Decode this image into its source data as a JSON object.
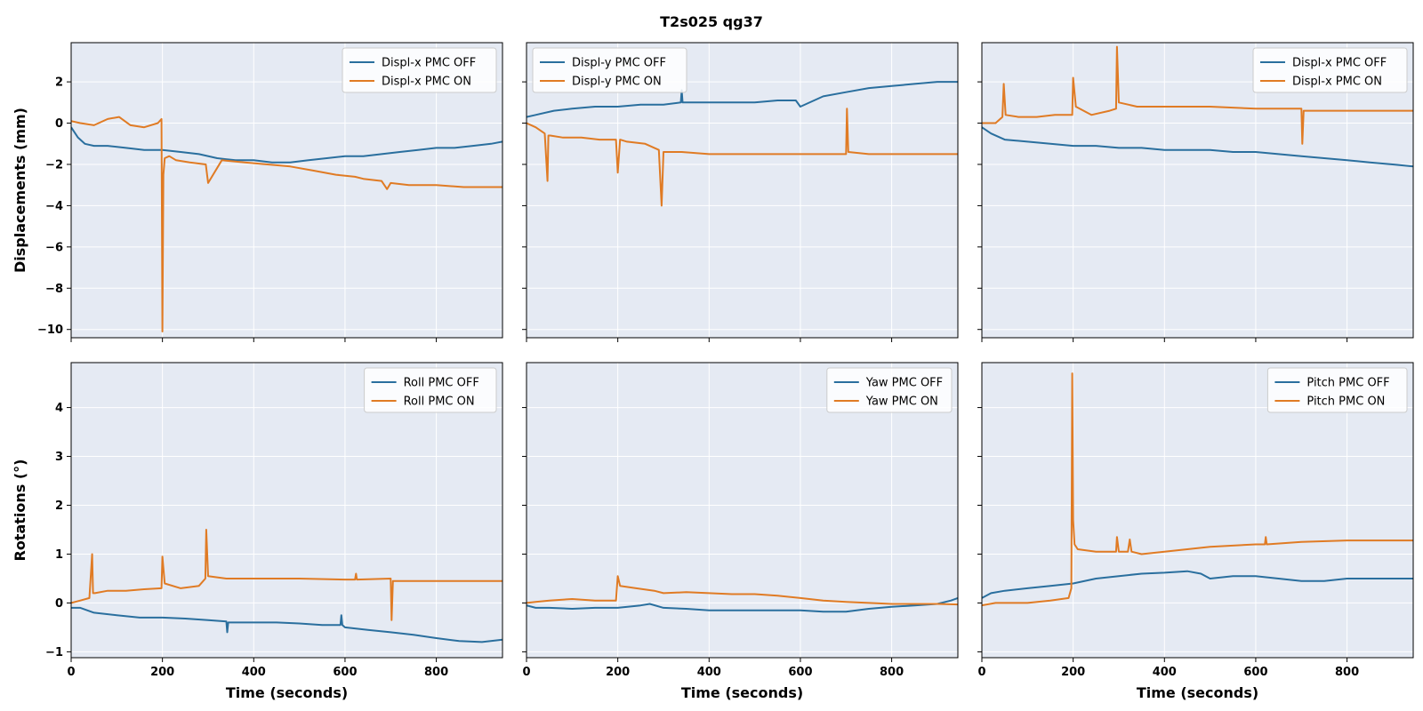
{
  "figure": {
    "title": "T2s025  qg37",
    "background": "#ffffff",
    "panel_background": "#e5eaf3",
    "grid_color": "#ffffff",
    "series_colors": {
      "off": "#2a6f9e",
      "on": "#e07b24"
    }
  },
  "chart_data": [
    {
      "type": "line",
      "panel": "top-left",
      "title": "",
      "xlabel": "",
      "ylabel": "Displacements (mm)",
      "xlim": [
        0,
        945
      ],
      "ylim": [
        -10.4,
        3.9
      ],
      "xticks": [
        0,
        200,
        400,
        600,
        800
      ],
      "yticks": [
        -10,
        -8,
        -6,
        -4,
        -2,
        0,
        2
      ],
      "show_xtick_labels": false,
      "show_ytick_labels": true,
      "grid": true,
      "legend": "top-right",
      "series": [
        {
          "name": "Displ-x PMC OFF",
          "color": "#2a6f9e",
          "x": [
            0,
            15,
            30,
            50,
            80,
            120,
            160,
            200,
            240,
            280,
            320,
            360,
            400,
            440,
            480,
            520,
            560,
            600,
            640,
            680,
            720,
            760,
            800,
            840,
            880,
            920,
            945
          ],
          "y": [
            -0.2,
            -0.7,
            -1.0,
            -1.1,
            -1.1,
            -1.2,
            -1.3,
            -1.3,
            -1.4,
            -1.5,
            -1.7,
            -1.8,
            -1.8,
            -1.9,
            -1.9,
            -1.8,
            -1.7,
            -1.6,
            -1.6,
            -1.5,
            -1.4,
            -1.3,
            -1.2,
            -1.2,
            -1.1,
            -1.0,
            -0.9
          ]
        },
        {
          "name": "Displ-x PMC ON",
          "color": "#e07b24",
          "x": [
            0,
            20,
            50,
            80,
            105,
            130,
            160,
            190,
            198,
            200,
            202,
            205,
            215,
            230,
            260,
            295,
            300,
            330,
            380,
            430,
            480,
            530,
            580,
            622,
            640,
            680,
            692,
            700,
            740,
            800,
            860,
            945
          ],
          "y": [
            0.1,
            0.0,
            -0.1,
            0.2,
            0.3,
            -0.1,
            -0.2,
            0.0,
            0.2,
            -10.1,
            -2.5,
            -1.7,
            -1.6,
            -1.8,
            -1.9,
            -2.0,
            -2.9,
            -1.8,
            -1.9,
            -2.0,
            -2.1,
            -2.3,
            -2.5,
            -2.6,
            -2.7,
            -2.8,
            -3.2,
            -2.9,
            -3.0,
            -3.0,
            -3.1,
            -3.1
          ]
        }
      ]
    },
    {
      "type": "line",
      "panel": "top-center",
      "title": "",
      "xlabel": "",
      "ylabel": "",
      "xlim": [
        0,
        945
      ],
      "ylim": [
        -10.4,
        3.9
      ],
      "xticks": [
        0,
        200,
        400,
        600,
        800
      ],
      "yticks": [
        -10,
        -8,
        -6,
        -4,
        -2,
        0,
        2
      ],
      "show_xtick_labels": false,
      "show_ytick_labels": false,
      "grid": true,
      "legend": "top-left",
      "series": [
        {
          "name": "Displ-y PMC OFF",
          "color": "#2a6f9e",
          "x": [
            0,
            20,
            60,
            100,
            150,
            200,
            250,
            300,
            338,
            340,
            342,
            400,
            450,
            500,
            550,
            590,
            600,
            650,
            700,
            750,
            800,
            850,
            900,
            945
          ],
          "y": [
            0.3,
            0.4,
            0.6,
            0.7,
            0.8,
            0.8,
            0.9,
            0.9,
            1.0,
            1.6,
            1.0,
            1.0,
            1.0,
            1.0,
            1.1,
            1.1,
            0.8,
            1.3,
            1.5,
            1.7,
            1.8,
            1.9,
            2.0,
            2.0
          ]
        },
        {
          "name": "Displ-y PMC ON",
          "color": "#e07b24",
          "x": [
            0,
            20,
            40,
            46,
            48,
            52,
            80,
            120,
            160,
            196,
            200,
            205,
            220,
            260,
            290,
            296,
            300,
            340,
            400,
            500,
            600,
            700,
            702,
            705,
            750,
            800,
            900,
            945
          ],
          "y": [
            0.0,
            -0.2,
            -0.5,
            -2.8,
            -0.6,
            -0.6,
            -0.7,
            -0.7,
            -0.8,
            -0.8,
            -2.4,
            -0.8,
            -0.9,
            -1.0,
            -1.3,
            -4.0,
            -1.4,
            -1.4,
            -1.5,
            -1.5,
            -1.5,
            -1.5,
            0.7,
            -1.4,
            -1.5,
            -1.5,
            -1.5,
            -1.5
          ]
        }
      ]
    },
    {
      "type": "line",
      "panel": "top-right",
      "title": "",
      "xlabel": "",
      "ylabel": "",
      "xlim": [
        0,
        945
      ],
      "ylim": [
        -10.4,
        3.9
      ],
      "xticks": [
        0,
        200,
        400,
        600,
        800
      ],
      "yticks": [
        -10,
        -8,
        -6,
        -4,
        -2,
        0,
        2
      ],
      "show_xtick_labels": false,
      "show_ytick_labels": false,
      "grid": true,
      "legend": "top-right",
      "series": [
        {
          "name": "Displ-x PMC OFF",
          "color": "#2a6f9e",
          "x": [
            0,
            20,
            50,
            100,
            150,
            200,
            250,
            300,
            350,
            400,
            450,
            500,
            550,
            600,
            650,
            700,
            750,
            800,
            850,
            900,
            945
          ],
          "y": [
            -0.2,
            -0.5,
            -0.8,
            -0.9,
            -1.0,
            -1.1,
            -1.1,
            -1.2,
            -1.2,
            -1.3,
            -1.3,
            -1.3,
            -1.4,
            -1.4,
            -1.5,
            -1.6,
            -1.7,
            -1.8,
            -1.9,
            -2.0,
            -2.1
          ]
        },
        {
          "name": "Displ-x PMC ON",
          "color": "#e07b24",
          "x": [
            0,
            30,
            45,
            48,
            52,
            80,
            120,
            160,
            198,
            200,
            206,
            240,
            280,
            294,
            296,
            300,
            340,
            400,
            500,
            600,
            700,
            702,
            705,
            750,
            800,
            900,
            945
          ],
          "y": [
            0.0,
            0.0,
            0.3,
            1.9,
            0.4,
            0.3,
            0.3,
            0.4,
            0.4,
            2.2,
            0.8,
            0.4,
            0.6,
            0.7,
            3.7,
            1.0,
            0.8,
            0.8,
            0.8,
            0.7,
            0.7,
            -1.0,
            0.6,
            0.6,
            0.6,
            0.6,
            0.6
          ]
        }
      ]
    },
    {
      "type": "line",
      "panel": "bottom-left",
      "title": "",
      "xlabel": "Time (seconds)",
      "ylabel": "Rotations (°)",
      "xlim": [
        0,
        945
      ],
      "ylim": [
        -1.12,
        4.92
      ],
      "xticks": [
        0,
        200,
        400,
        600,
        800
      ],
      "yticks": [
        -1,
        0,
        1,
        2,
        3,
        4
      ],
      "show_xtick_labels": true,
      "show_ytick_labels": true,
      "grid": true,
      "legend": "top-right",
      "series": [
        {
          "name": "Roll PMC OFF",
          "color": "#2a6f9e",
          "x": [
            0,
            20,
            50,
            100,
            150,
            200,
            250,
            300,
            340,
            342,
            344,
            400,
            450,
            500,
            550,
            590,
            592,
            594,
            600,
            650,
            700,
            750,
            800,
            850,
            900,
            945
          ],
          "y": [
            -0.1,
            -0.1,
            -0.2,
            -0.25,
            -0.3,
            -0.3,
            -0.32,
            -0.35,
            -0.38,
            -0.6,
            -0.4,
            -0.4,
            -0.4,
            -0.42,
            -0.45,
            -0.45,
            -0.25,
            -0.45,
            -0.5,
            -0.55,
            -0.6,
            -0.65,
            -0.72,
            -0.78,
            -0.8,
            -0.75
          ]
        },
        {
          "name": "Roll PMC ON",
          "color": "#e07b24",
          "x": [
            0,
            20,
            40,
            46,
            48,
            52,
            80,
            120,
            160,
            198,
            200,
            205,
            240,
            280,
            294,
            296,
            300,
            340,
            400,
            500,
            600,
            622,
            624,
            626,
            700,
            702,
            705,
            750,
            800,
            900,
            945
          ],
          "y": [
            0.0,
            0.05,
            0.1,
            1.0,
            0.2,
            0.2,
            0.25,
            0.25,
            0.28,
            0.3,
            0.95,
            0.4,
            0.3,
            0.35,
            0.5,
            1.5,
            0.55,
            0.5,
            0.5,
            0.5,
            0.48,
            0.48,
            0.6,
            0.48,
            0.5,
            -0.35,
            0.45,
            0.45,
            0.45,
            0.45,
            0.45
          ]
        }
      ]
    },
    {
      "type": "line",
      "panel": "bottom-center",
      "title": "",
      "xlabel": "Time (seconds)",
      "ylabel": "",
      "xlim": [
        0,
        945
      ],
      "ylim": [
        -1.12,
        4.92
      ],
      "xticks": [
        0,
        200,
        400,
        600,
        800
      ],
      "yticks": [
        -1,
        0,
        1,
        2,
        3,
        4
      ],
      "show_xtick_labels": true,
      "show_ytick_labels": false,
      "grid": true,
      "legend": "top-right",
      "series": [
        {
          "name": "Yaw PMC OFF",
          "color": "#2a6f9e",
          "x": [
            0,
            20,
            50,
            100,
            150,
            200,
            250,
            270,
            300,
            350,
            400,
            450,
            500,
            550,
            600,
            650,
            700,
            750,
            800,
            850,
            900,
            930,
            945
          ],
          "y": [
            -0.05,
            -0.1,
            -0.1,
            -0.12,
            -0.1,
            -0.1,
            -0.05,
            -0.02,
            -0.1,
            -0.12,
            -0.15,
            -0.15,
            -0.15,
            -0.15,
            -0.15,
            -0.18,
            -0.18,
            -0.12,
            -0.08,
            -0.05,
            -0.02,
            0.05,
            0.1
          ]
        },
        {
          "name": "Yaw PMC ON",
          "color": "#e07b24",
          "x": [
            0,
            20,
            50,
            100,
            150,
            196,
            198,
            200,
            205,
            240,
            280,
            300,
            350,
            400,
            450,
            500,
            550,
            600,
            650,
            700,
            750,
            800,
            850,
            900,
            945
          ],
          "y": [
            0.0,
            0.02,
            0.05,
            0.08,
            0.05,
            0.05,
            0.3,
            0.55,
            0.35,
            0.3,
            0.25,
            0.2,
            0.22,
            0.2,
            0.18,
            0.18,
            0.15,
            0.1,
            0.05,
            0.02,
            0.0,
            -0.02,
            -0.02,
            -0.02,
            -0.03
          ]
        }
      ]
    },
    {
      "type": "line",
      "panel": "bottom-right",
      "title": "",
      "xlabel": "Time (seconds)",
      "ylabel": "",
      "xlim": [
        0,
        945
      ],
      "ylim": [
        -1.12,
        4.92
      ],
      "xticks": [
        0,
        200,
        400,
        600,
        800
      ],
      "yticks": [
        -1,
        0,
        1,
        2,
        3,
        4
      ],
      "show_xtick_labels": true,
      "show_ytick_labels": false,
      "grid": true,
      "legend": "top-right",
      "series": [
        {
          "name": "Pitch PMC OFF",
          "color": "#2a6f9e",
          "x": [
            0,
            20,
            50,
            100,
            150,
            200,
            250,
            300,
            350,
            400,
            450,
            480,
            500,
            550,
            600,
            650,
            700,
            750,
            800,
            850,
            900,
            945
          ],
          "y": [
            0.1,
            0.2,
            0.25,
            0.3,
            0.35,
            0.4,
            0.5,
            0.55,
            0.6,
            0.62,
            0.65,
            0.6,
            0.5,
            0.55,
            0.55,
            0.5,
            0.45,
            0.45,
            0.5,
            0.5,
            0.5,
            0.5
          ]
        },
        {
          "name": "Pitch PMC ON",
          "color": "#e07b24",
          "x": [
            0,
            30,
            60,
            100,
            150,
            190,
            196,
            198,
            200,
            203,
            210,
            250,
            294,
            296,
            300,
            320,
            324,
            328,
            350,
            400,
            500,
            600,
            620,
            622,
            624,
            700,
            800,
            900,
            945
          ],
          "y": [
            -0.05,
            0.0,
            0.0,
            0.0,
            0.05,
            0.1,
            0.3,
            4.7,
            1.7,
            1.2,
            1.1,
            1.05,
            1.05,
            1.35,
            1.05,
            1.05,
            1.3,
            1.05,
            1.0,
            1.05,
            1.15,
            1.2,
            1.2,
            1.35,
            1.2,
            1.25,
            1.28,
            1.28,
            1.28
          ]
        }
      ]
    }
  ]
}
